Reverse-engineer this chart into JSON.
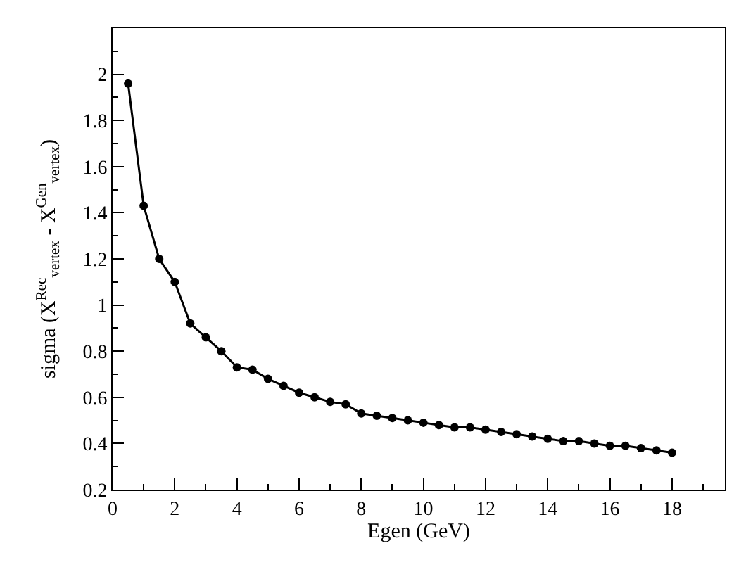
{
  "chart_data": {
    "type": "line",
    "xlabel": "Egen (GeV)",
    "ylabel": "sigma (X$^{Rec}$$_{vertex}$ - X$^{Gen}$$_{vertex}$)",
    "x": [
      0.5,
      1,
      1.5,
      2,
      2.5,
      3,
      3.5,
      4,
      4.5,
      5,
      5.5,
      6,
      6.5,
      7,
      7.5,
      8,
      8.5,
      9,
      9.5,
      10,
      10.5,
      11,
      11.5,
      12,
      12.5,
      13,
      13.5,
      14,
      14.5,
      15,
      15.5,
      16,
      16.5,
      17,
      17.5,
      18
    ],
    "series": [
      {
        "color": "#000000",
        "values": [
          1.96,
          1.43,
          1.2,
          1.1,
          0.92,
          0.86,
          0.8,
          0.73,
          0.72,
          0.68,
          0.65,
          0.62,
          0.6,
          0.58,
          0.57,
          0.53,
          0.52,
          0.51,
          0.5,
          0.49,
          0.48,
          0.47,
          0.47,
          0.46,
          0.45,
          0.44,
          0.43,
          0.42,
          0.41,
          0.41,
          0.4,
          0.39,
          0.39,
          0.38,
          0.37,
          0.36
        ]
      }
    ],
    "xlim": [
      0,
      19.7
    ],
    "xticks": [
      0,
      2,
      4,
      6,
      8,
      10,
      12,
      14,
      16,
      18
    ],
    "ylim": [
      0.2,
      2.2
    ],
    "yticks": [
      0.2,
      0.4,
      0.6,
      0.8,
      1,
      1.2,
      1.4,
      1.6,
      1.8,
      2
    ],
    "marker": "circle",
    "line_style": "solid",
    "legend": false
  }
}
